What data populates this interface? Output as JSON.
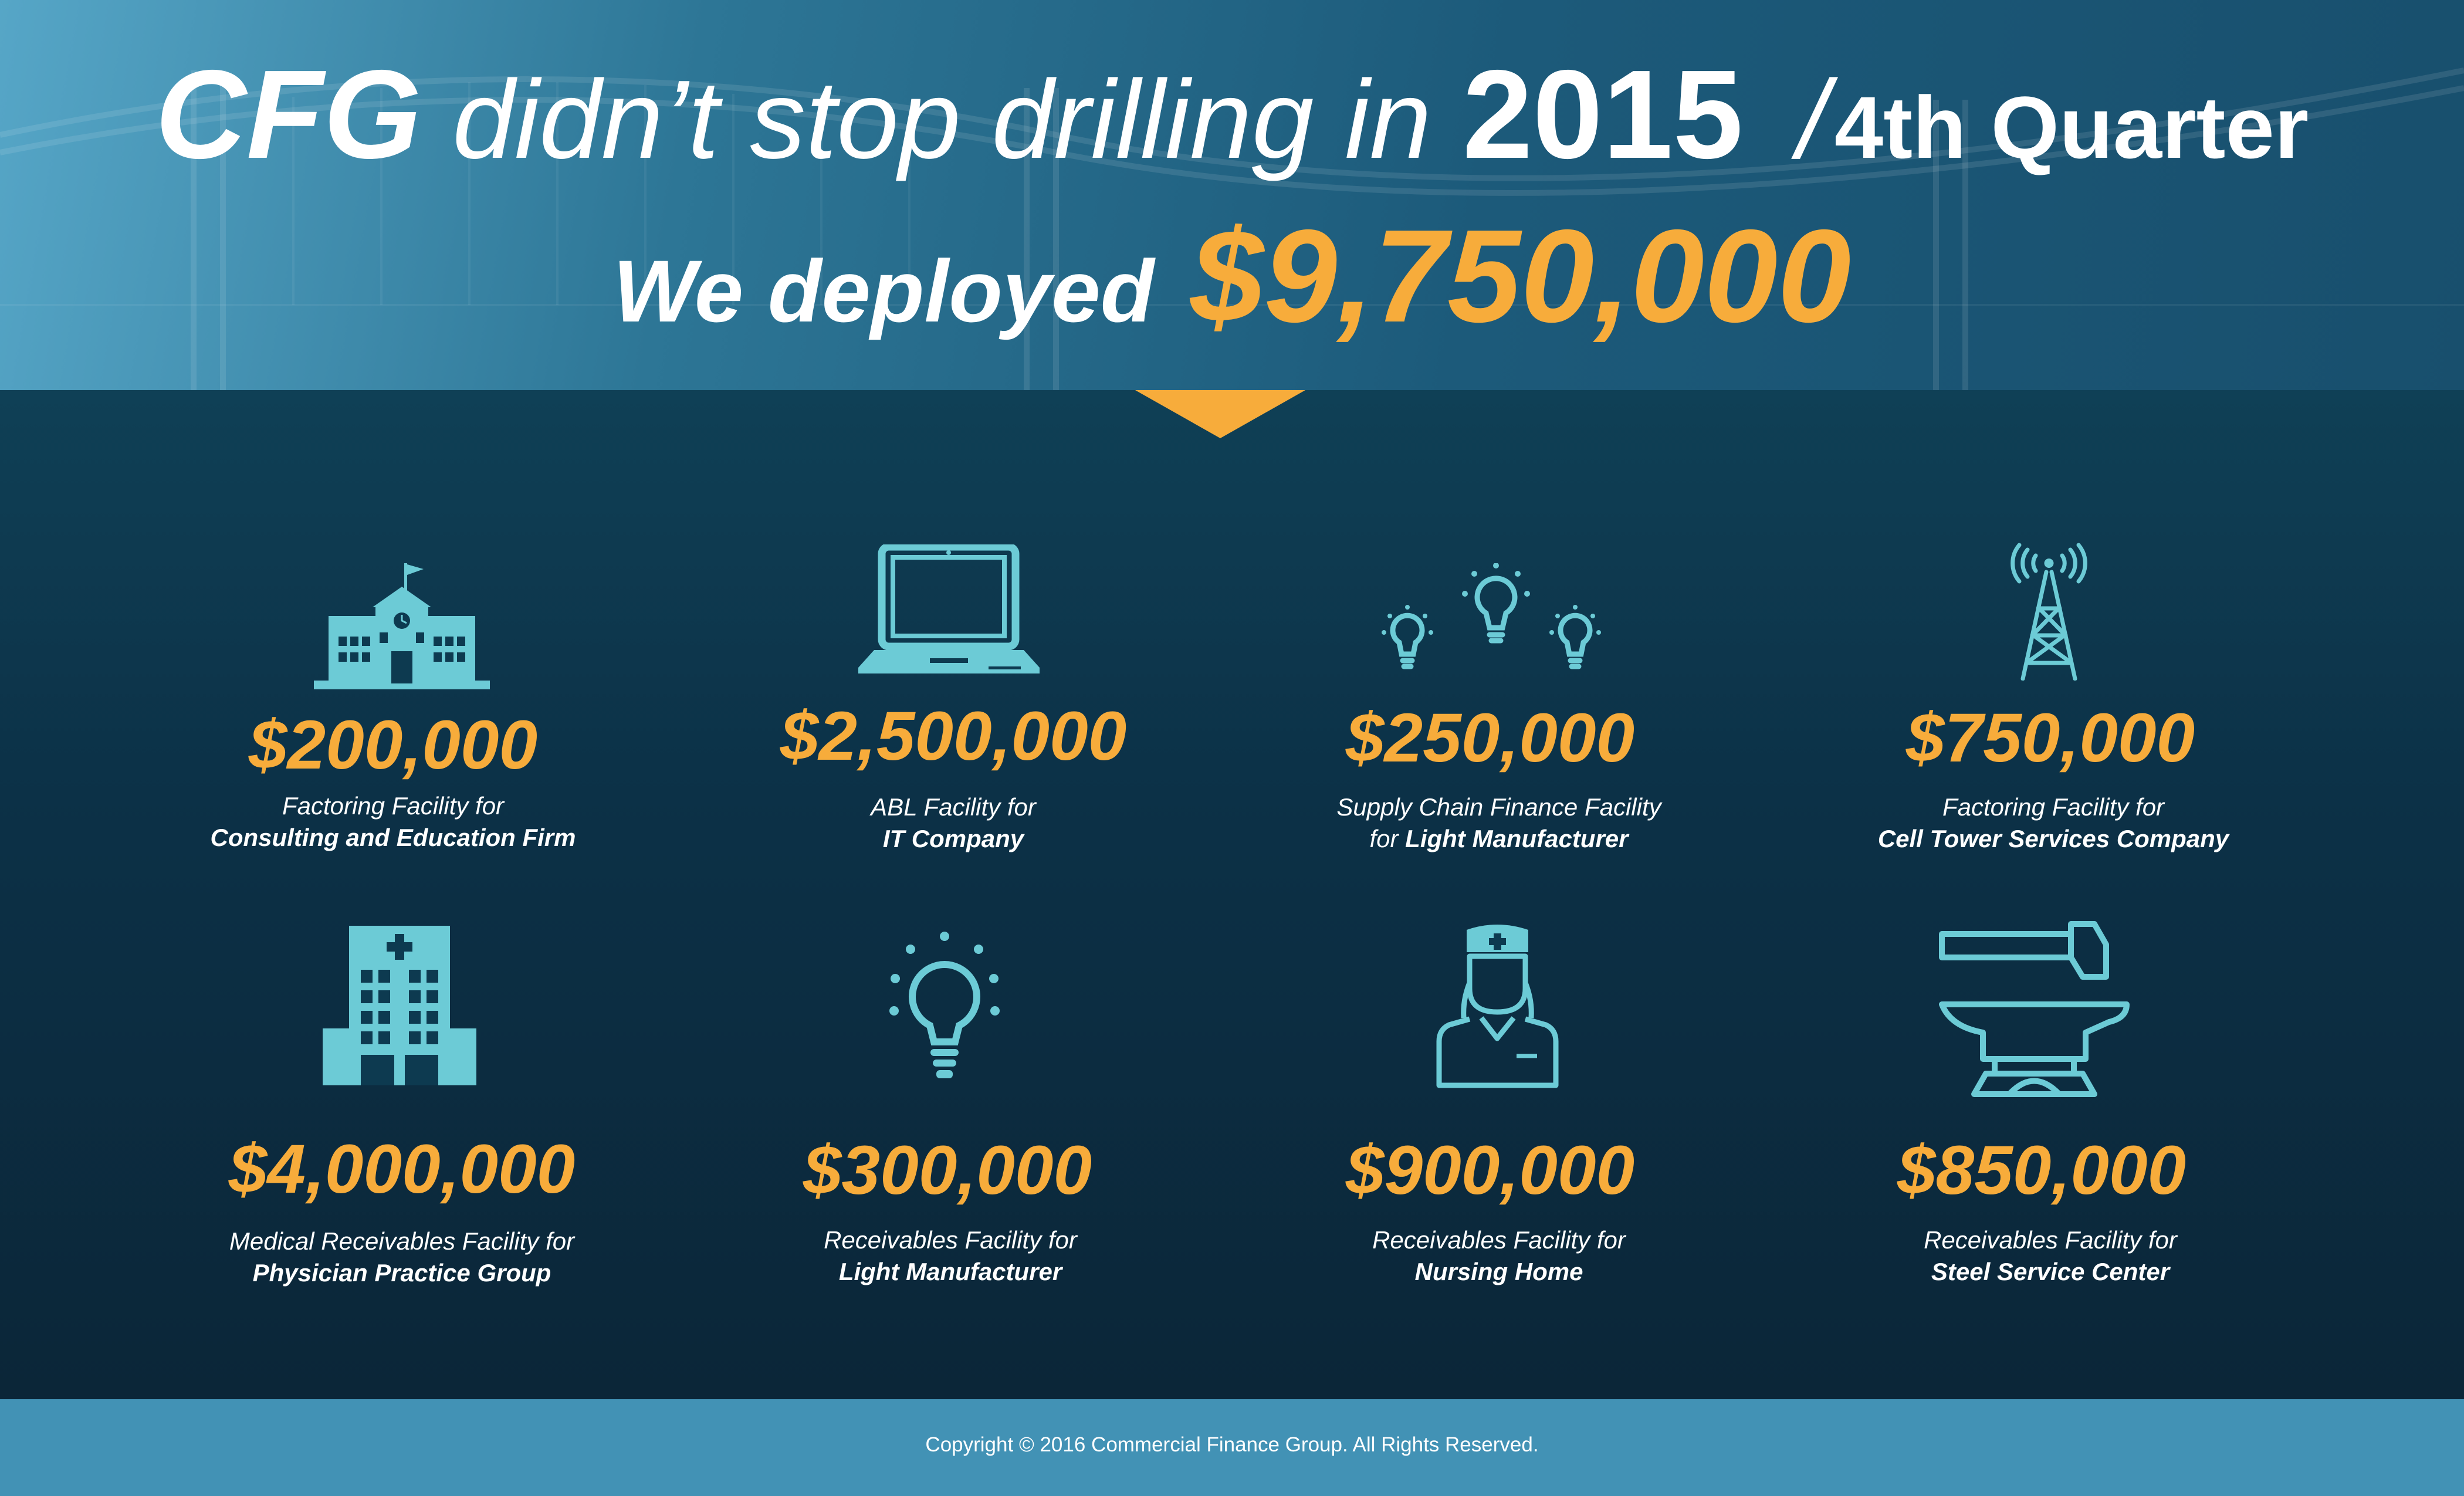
{
  "header": {
    "brand": "CFG",
    "headline": "didn’t stop drilling in",
    "year": "2015",
    "divider": "/",
    "quarter": "4th Quarter",
    "deployed_label": "We deployed",
    "deployed_amount": "$9,750,000"
  },
  "colors": {
    "accent": "#f7ac3b",
    "icon": "#6ccbd6",
    "background": "#0d2e42",
    "footer": "#4292b5"
  },
  "items": [
    {
      "icon": "school-building-icon",
      "amount": "$200,000",
      "line1": "Factoring Facility for",
      "line2": "Consulting and Education Firm"
    },
    {
      "icon": "laptop-icon",
      "amount": "$2,500,000",
      "line1": "ABL Facility for",
      "line2": "IT Company"
    },
    {
      "icon": "three-lightbulbs-icon",
      "amount": "$250,000",
      "line1": "Supply Chain Finance Facility",
      "line2_prefix": "for",
      "line2": "Light Manufacturer"
    },
    {
      "icon": "cell-tower-icon",
      "amount": "$750,000",
      "line1": "Factoring Facility for",
      "line2": "Cell Tower Services Company"
    },
    {
      "icon": "hospital-icon",
      "amount": "$4,000,000",
      "line1": "Medical Receivables Facility for",
      "line2": "Physician Practice Group"
    },
    {
      "icon": "lightbulb-icon",
      "amount": "$300,000",
      "line1": "Receivables Facility for",
      "line2": "Light Manufacturer"
    },
    {
      "icon": "nurse-icon",
      "amount": "$900,000",
      "line1": "Receivables Facility for",
      "line2": "Nursing Home"
    },
    {
      "icon": "anvil-hammer-icon",
      "amount": "$850,000",
      "line1": "Receivables Facility for",
      "line2": "Steel Service Center"
    }
  ],
  "footer": {
    "copyright": "Copyright © 2016 Commercial Finance Group. All Rights Reserved."
  }
}
